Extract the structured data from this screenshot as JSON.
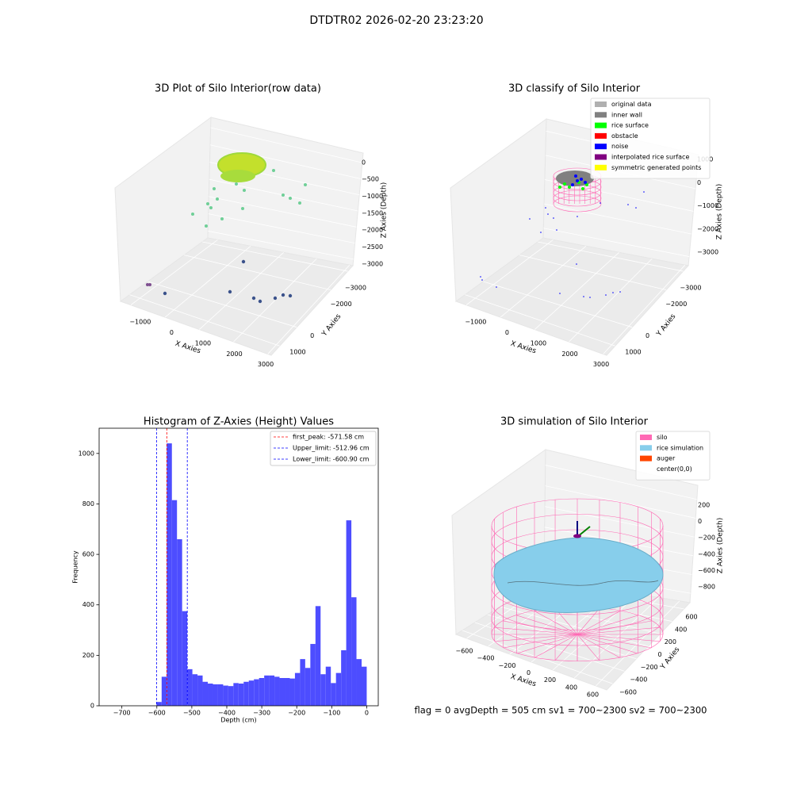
{
  "title": "DTDTR02 2026-02-20 23:23:20",
  "footer": "flag = 0     avgDepth = 505 cm  sv1 = 700~2300  sv2 = 700~2300",
  "chart_data": [
    {
      "type": "3d",
      "title": "3D Plot of Silo Interior(row data)",
      "xlabel": "X Axies",
      "ylabel": "Y Axies",
      "zlabel": "Z Axies (Depth)",
      "xlim": [
        -1300,
        3100
      ],
      "xticks": [
        {
          "value": -1000,
          "label": "−1000"
        },
        0,
        1000,
        2000,
        3000
      ],
      "ylim": [
        -3500,
        1300
      ],
      "yticks": [
        1000,
        0,
        {
          "value": -2000,
          "label": "−2000"
        },
        {
          "value": -3000,
          "label": "−3000"
        }
      ],
      "zlim": [
        -3200,
        300
      ],
      "zticks": [
        0,
        {
          "value": -500,
          "label": "−500"
        },
        {
          "value": -1000,
          "label": "−1000"
        },
        {
          "value": -1500,
          "label": "−1500"
        },
        {
          "value": -2000,
          "label": "−2000"
        },
        {
          "value": -2500,
          "label": "−2500"
        },
        {
          "value": -3000,
          "label": "−3000"
        }
      ]
    },
    {
      "type": "3d",
      "title": "3D classify of Silo Interior",
      "xlabel": "X Axies",
      "ylabel": "Y Axies",
      "zlabel": "Z Axies (Depth)",
      "xlim": [
        -1300,
        3100
      ],
      "xticks": [
        {
          "value": -1000,
          "label": "−1000"
        },
        0,
        1000,
        2000,
        3000
      ],
      "ylim": [
        -3500,
        1300
      ],
      "yticks": [
        1000,
        0,
        {
          "value": -2000,
          "label": "−2000"
        },
        {
          "value": -3000,
          "label": "−3000"
        }
      ],
      "zlim": [
        -3400,
        1500
      ],
      "zticks": [
        1000,
        0,
        {
          "value": -1000,
          "label": "−1000"
        },
        {
          "value": -2000,
          "label": "−2000"
        },
        {
          "value": -3000,
          "label": "−3000"
        }
      ],
      "legend": [
        {
          "name": "original data",
          "color": "#b0b0b0"
        },
        {
          "name": "inner wall",
          "color": "#808080"
        },
        {
          "name": "rice surface",
          "color": "#00ff00"
        },
        {
          "name": "obstacle",
          "color": "#ff0000"
        },
        {
          "name": "noise",
          "color": "#0000ff"
        },
        {
          "name": "interpolated rice surface",
          "color": "#800080"
        },
        {
          "name": "symmetric generated points",
          "color": "#ffff00"
        }
      ]
    },
    {
      "type": "histogram",
      "title": "Histogram of Z-Axies (Height) Values",
      "xlabel": "Depth (cm)",
      "ylabel": "Frequency",
      "color": "#4d4dff",
      "bins": [
        -601,
        -586.3,
        -571.7,
        -557,
        -542.4,
        -527.7,
        -513,
        -498.4,
        -483.7,
        -469.1,
        -454.4,
        -439.7,
        -425.1,
        -410.4,
        -395.8,
        -381.1,
        -366.4,
        -351.8,
        -337.1,
        -322.5,
        -307.8,
        -293.1,
        -278.5,
        -263.8,
        -249.2,
        -234.5,
        -219.8,
        -205.2,
        -190.5,
        -175.9,
        -161.2,
        -146.5,
        -131.9,
        -117.2,
        -102.6,
        -87.9,
        -73.2,
        -58.6,
        -43.9,
        -29.3,
        -14.6,
        0
      ],
      "counts": [
        15,
        115,
        1040,
        815,
        660,
        375,
        145,
        125,
        120,
        95,
        88,
        85,
        85,
        80,
        78,
        90,
        88,
        95,
        100,
        105,
        110,
        120,
        120,
        115,
        110,
        110,
        108,
        130,
        185,
        150,
        245,
        395,
        125,
        155,
        90,
        130,
        220,
        735,
        430,
        185,
        155
      ],
      "xlim": [
        -765,
        33
      ],
      "xticks": [
        {
          "value": -700,
          "label": "−700"
        },
        {
          "value": -600,
          "label": "−600"
        },
        {
          "value": -500,
          "label": "−500"
        },
        {
          "value": -400,
          "label": "−400"
        },
        {
          "value": -300,
          "label": "−300"
        },
        {
          "value": -200,
          "label": "−200"
        },
        {
          "value": -100,
          "label": "−100"
        },
        0
      ],
      "ylim": [
        0,
        1100
      ],
      "yticks": [
        0,
        200,
        400,
        600,
        800,
        1000
      ],
      "lines": [
        {
          "label": "first_peak: -571.58 cm",
          "value": -571.58,
          "color": "#ff0000"
        },
        {
          "label": "Upper_limit: -512.96 cm",
          "value": -512.96,
          "color": "#0000ff"
        },
        {
          "label": "Lower_limit: -600.90 cm",
          "value": -600.9,
          "color": "#0000ff"
        }
      ]
    },
    {
      "type": "3d",
      "title": "3D simulation of Silo Interior",
      "xlabel": "X Axies",
      "ylabel": "Y Axies",
      "zlabel": "Z Axies (Depth)",
      "xlim": [
        -700,
        700
      ],
      "xticks": [
        {
          "value": -600,
          "label": "−600"
        },
        {
          "value": -400,
          "label": "−400"
        },
        {
          "value": -200,
          "label": "−200"
        },
        0,
        200,
        400,
        600
      ],
      "ylim": [
        -700,
        700
      ],
      "yticks": [
        600,
        400,
        200,
        0,
        {
          "value": -200,
          "label": "−200"
        },
        {
          "value": -400,
          "label": "−400"
        },
        {
          "value": -600,
          "label": "−600"
        }
      ],
      "zlim": [
        -900,
        350
      ],
      "zticks": [
        200,
        0,
        {
          "value": -200,
          "label": "−200"
        },
        {
          "value": -400,
          "label": "−400"
        },
        {
          "value": -600,
          "label": "−600"
        },
        {
          "value": -800,
          "label": "−800"
        }
      ],
      "legend": [
        {
          "name": "silo",
          "color": "#ff69b4"
        },
        {
          "name": "rice simulation",
          "color": "#87ceeb"
        },
        {
          "name": "auger",
          "color": "#ff4500"
        },
        {
          "name": "center(0,0)",
          "color": "#ffffff"
        }
      ]
    }
  ]
}
